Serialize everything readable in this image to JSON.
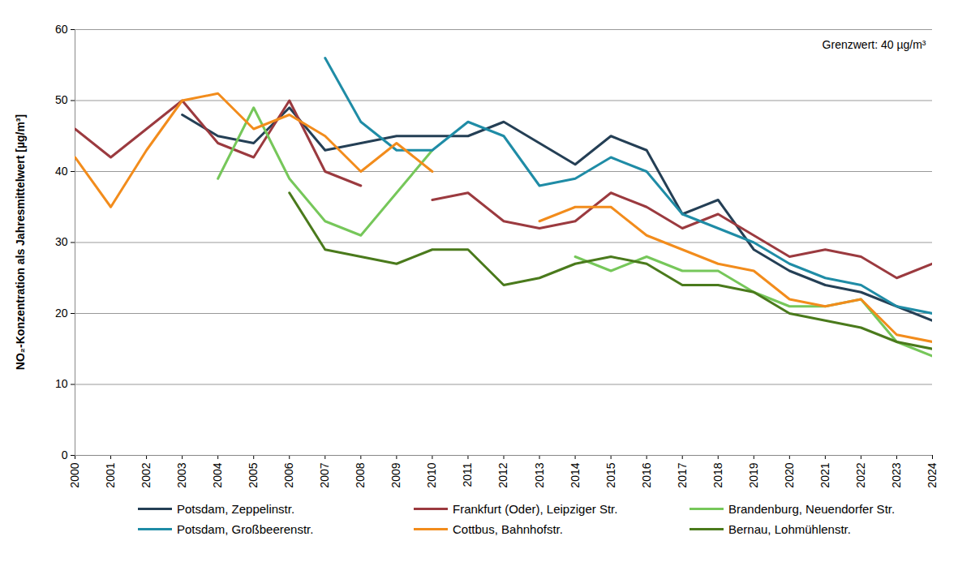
{
  "chart_data": {
    "type": "line",
    "y_label": "NO₂-Konzentration als Jahresmittelwert [µg/m³]",
    "annotations": [
      {
        "text": "Grenzwert: 40 µg/m³"
      }
    ],
    "x": [
      2000,
      2001,
      2002,
      2003,
      2004,
      2005,
      2006,
      2007,
      2008,
      2009,
      2010,
      2011,
      2012,
      2013,
      2014,
      2015,
      2016,
      2017,
      2018,
      2019,
      2020,
      2021,
      2022,
      2023,
      2024
    ],
    "xlim": [
      2000,
      2024
    ],
    "xticks": [
      2000,
      2001,
      2002,
      2003,
      2004,
      2005,
      2006,
      2007,
      2008,
      2009,
      2010,
      2011,
      2012,
      2013,
      2014,
      2015,
      2016,
      2017,
      2018,
      2019,
      2020,
      2021,
      2022,
      2023,
      2024
    ],
    "ylim": [
      0,
      60
    ],
    "yticks": [
      0,
      10,
      20,
      30,
      40,
      50,
      60
    ],
    "grid": true,
    "legend": "bottom",
    "series": [
      {
        "name": "Potsdam, Zeppelinstr.",
        "color": "#243f55",
        "values": [
          null,
          null,
          null,
          48,
          45,
          44,
          49,
          43,
          44,
          45,
          45,
          45,
          47,
          44,
          41,
          45,
          43,
          34,
          36,
          29,
          26,
          24,
          23,
          21,
          19
        ]
      },
      {
        "name": "Frankfurt (Oder), Leipziger Str.",
        "color": "#9b3a3f",
        "values": [
          46,
          42,
          46,
          50,
          44,
          42,
          50,
          40,
          38,
          null,
          36,
          37,
          33,
          32,
          33,
          37,
          35,
          32,
          34,
          31,
          28,
          29,
          28,
          25,
          27
        ]
      },
      {
        "name": "Brandenburg, Neuendorfer Str.",
        "color": "#76c75a",
        "values": [
          null,
          null,
          null,
          null,
          39,
          49,
          39,
          33,
          31,
          37,
          43,
          null,
          null,
          null,
          28,
          26,
          28,
          26,
          26,
          23,
          21,
          21,
          22,
          16,
          14
        ]
      },
      {
        "name": "Potsdam, Großbeerenstr.",
        "color": "#1f8ca6",
        "values": [
          null,
          null,
          null,
          null,
          null,
          null,
          null,
          56,
          47,
          43,
          43,
          47,
          45,
          38,
          39,
          42,
          40,
          34,
          32,
          30,
          27,
          25,
          24,
          21,
          20
        ]
      },
      {
        "name": "Cottbus, Bahnhofstr.",
        "color": "#f28c1c",
        "values": [
          42,
          35,
          43,
          50,
          51,
          46,
          48,
          45,
          40,
          44,
          40,
          null,
          null,
          33,
          35,
          35,
          31,
          29,
          27,
          26,
          22,
          21,
          22,
          17,
          16
        ]
      },
      {
        "name": "Bernau, Lohmühlenstr.",
        "color": "#4a7a1c",
        "values": [
          null,
          null,
          null,
          null,
          null,
          null,
          37,
          29,
          28,
          27,
          29,
          29,
          24,
          25,
          27,
          28,
          27,
          24,
          24,
          23,
          20,
          19,
          18,
          16,
          15
        ]
      }
    ]
  }
}
